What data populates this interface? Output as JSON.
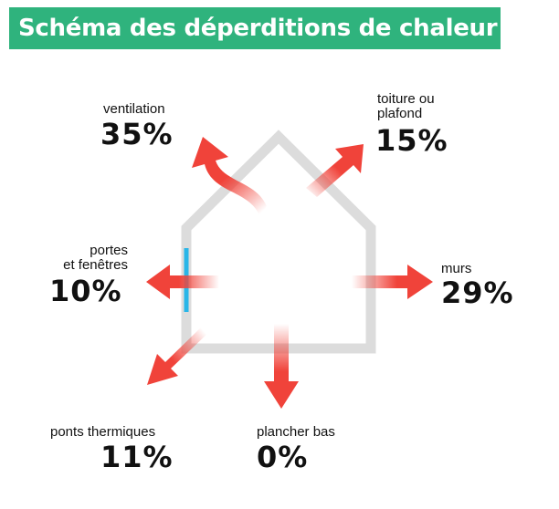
{
  "title": "Schéma des déperditions de chaleur",
  "colors": {
    "banner": "#2fb37d",
    "arrow": "#f0433a",
    "house_outline": "#dcdcdc",
    "window": "#29b6e8",
    "text": "#111111"
  },
  "losses": [
    {
      "id": "ventilation",
      "lines": [
        "ventilation"
      ],
      "value": "35%"
    },
    {
      "id": "toiture",
      "lines": [
        "toiture ou",
        "plafond"
      ],
      "value": "15%"
    },
    {
      "id": "portes",
      "lines": [
        "portes",
        "et fenêtres"
      ],
      "value": "10%"
    },
    {
      "id": "murs",
      "lines": [
        "murs"
      ],
      "value": "29%"
    },
    {
      "id": "ponts",
      "lines": [
        "ponts thermiques"
      ],
      "value": "11%"
    },
    {
      "id": "plancher",
      "lines": [
        "plancher bas"
      ],
      "value": "0%"
    }
  ]
}
